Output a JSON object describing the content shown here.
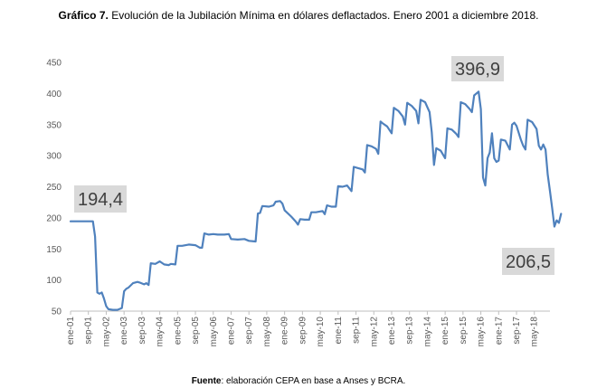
{
  "header": {
    "title_bold": "Gráfico 7.",
    "title_text": " Evolución de la Jubilación Mínima en dólares deflactados. Enero 2001 a diciembre 2018."
  },
  "footer": {
    "source_bold": "Fuente",
    "source_text": ": elaboración CEPA en base a Anses y BCRA."
  },
  "chart_data": {
    "type": "line",
    "title": "",
    "xlabel": "",
    "ylabel": "",
    "ylim": [
      50,
      450
    ],
    "yticks": [
      50,
      100,
      150,
      200,
      250,
      300,
      350,
      400,
      450
    ],
    "grid": false,
    "legend": "none",
    "line_color": "#4f81bd",
    "x_start": "2001-01",
    "x_end": "2018-12",
    "x_tick_labels": [
      "ene-01",
      "sep-01",
      "may-02",
      "ene-03",
      "sep-03",
      "may-04",
      "ene-05",
      "sep-05",
      "may-06",
      "ene-07",
      "sep-07",
      "may-08",
      "ene-09",
      "sep-09",
      "may-10",
      "ene-11",
      "sep-11",
      "may-12",
      "ene-13",
      "sep-13",
      "may-14",
      "ene-15",
      "sep-15",
      "may-16",
      "ene-17",
      "sep-17",
      "may-18"
    ],
    "series": [
      {
        "points": [
          [
            "2001-01",
            194.4
          ],
          [
            "2001-06",
            194.4
          ],
          [
            "2001-11",
            194.4
          ],
          [
            "2001-12",
            170
          ],
          [
            "2002-01",
            80
          ],
          [
            "2002-02",
            78
          ],
          [
            "2002-03",
            80
          ],
          [
            "2002-04",
            70
          ],
          [
            "2002-05",
            58
          ],
          [
            "2002-06",
            53
          ],
          [
            "2002-08",
            52
          ],
          [
            "2002-10",
            52
          ],
          [
            "2002-12",
            55
          ],
          [
            "2003-01",
            82
          ],
          [
            "2003-02",
            86
          ],
          [
            "2003-03",
            88
          ],
          [
            "2003-05",
            95
          ],
          [
            "2003-07",
            97
          ],
          [
            "2003-08",
            96
          ],
          [
            "2003-10",
            93
          ],
          [
            "2003-11",
            95
          ],
          [
            "2003-12",
            92
          ],
          [
            "2004-01",
            127
          ],
          [
            "2004-03",
            126
          ],
          [
            "2004-05",
            130
          ],
          [
            "2004-07",
            125
          ],
          [
            "2004-09",
            124
          ],
          [
            "2004-10",
            126
          ],
          [
            "2004-12",
            125
          ],
          [
            "2005-01",
            155
          ],
          [
            "2005-03",
            155
          ],
          [
            "2005-06",
            157
          ],
          [
            "2005-09",
            156
          ],
          [
            "2005-11",
            152
          ],
          [
            "2005-12",
            152
          ],
          [
            "2006-01",
            175
          ],
          [
            "2006-03",
            173
          ],
          [
            "2006-05",
            174
          ],
          [
            "2006-07",
            173
          ],
          [
            "2006-10",
            173
          ],
          [
            "2006-12",
            174
          ],
          [
            "2007-01",
            166
          ],
          [
            "2007-04",
            165
          ],
          [
            "2007-07",
            166
          ],
          [
            "2007-09",
            163
          ],
          [
            "2007-12",
            162
          ],
          [
            "2008-01",
            207
          ],
          [
            "2008-02",
            208
          ],
          [
            "2008-03",
            219
          ],
          [
            "2008-06",
            218
          ],
          [
            "2008-08",
            220
          ],
          [
            "2008-09",
            226
          ],
          [
            "2008-11",
            227
          ],
          [
            "2008-12",
            223
          ],
          [
            "2009-01",
            212
          ],
          [
            "2009-04",
            202
          ],
          [
            "2009-06",
            194
          ],
          [
            "2009-07",
            189
          ],
          [
            "2009-08",
            198
          ],
          [
            "2009-10",
            197
          ],
          [
            "2009-12",
            197
          ],
          [
            "2010-01",
            209
          ],
          [
            "2010-03",
            209
          ],
          [
            "2010-06",
            211
          ],
          [
            "2010-07",
            206
          ],
          [
            "2010-08",
            220
          ],
          [
            "2010-10",
            218
          ],
          [
            "2010-12",
            218
          ],
          [
            "2011-01",
            251
          ],
          [
            "2011-03",
            250
          ],
          [
            "2011-05",
            252
          ],
          [
            "2011-07",
            243
          ],
          [
            "2011-08",
            282
          ],
          [
            "2011-10",
            280
          ],
          [
            "2011-12",
            278
          ],
          [
            "2012-01",
            273
          ],
          [
            "2012-02",
            317
          ],
          [
            "2012-04",
            315
          ],
          [
            "2012-06",
            311
          ],
          [
            "2012-07",
            303
          ],
          [
            "2012-08",
            355
          ],
          [
            "2012-09",
            352
          ],
          [
            "2012-11",
            347
          ],
          [
            "2013-01",
            336
          ],
          [
            "2013-02",
            377
          ],
          [
            "2013-04",
            372
          ],
          [
            "2013-06",
            363
          ],
          [
            "2013-07",
            350
          ],
          [
            "2013-08",
            385
          ],
          [
            "2013-10",
            380
          ],
          [
            "2013-12",
            372
          ],
          [
            "2014-01",
            352
          ],
          [
            "2014-02",
            390
          ],
          [
            "2014-04",
            386
          ],
          [
            "2014-06",
            370
          ],
          [
            "2014-07",
            338
          ],
          [
            "2014-08",
            285
          ],
          [
            "2014-09",
            312
          ],
          [
            "2014-11",
            308
          ],
          [
            "2015-01",
            296
          ],
          [
            "2015-02",
            344
          ],
          [
            "2015-04",
            342
          ],
          [
            "2015-06",
            335
          ],
          [
            "2015-07",
            330
          ],
          [
            "2015-08",
            386
          ],
          [
            "2015-10",
            383
          ],
          [
            "2015-12",
            375
          ],
          [
            "2016-01",
            370
          ],
          [
            "2016-02",
            396.9
          ],
          [
            "2016-04",
            403
          ],
          [
            "2016-05",
            375
          ],
          [
            "2016-06",
            265
          ],
          [
            "2016-07",
            252
          ],
          [
            "2016-08",
            296
          ],
          [
            "2016-09",
            305
          ],
          [
            "2016-10",
            336
          ],
          [
            "2016-11",
            296
          ],
          [
            "2016-12",
            290
          ],
          [
            "2017-01",
            292
          ],
          [
            "2017-02",
            326
          ],
          [
            "2017-04",
            324
          ],
          [
            "2017-06",
            310
          ],
          [
            "2017-07",
            350
          ],
          [
            "2017-08",
            353
          ],
          [
            "2017-09",
            348
          ],
          [
            "2017-11",
            325
          ],
          [
            "2017-12",
            316
          ],
          [
            "2018-01",
            310
          ],
          [
            "2018-02",
            358
          ],
          [
            "2018-04",
            354
          ],
          [
            "2018-06",
            343
          ],
          [
            "2018-07",
            316
          ],
          [
            "2018-08",
            310
          ],
          [
            "2018-09",
            318
          ],
          [
            "2018-10",
            310
          ],
          [
            "2018-11",
            270
          ],
          [
            "2018-12",
            243
          ],
          [
            "2019-01",
            215
          ],
          [
            "2019-02",
            186
          ],
          [
            "2019-03",
            196
          ],
          [
            "2019-04",
            192
          ],
          [
            "2019-05",
            206.5
          ]
        ]
      }
    ],
    "annotations": [
      {
        "text": "194,4"
      },
      {
        "text": "396,9"
      },
      {
        "text": "206,5"
      }
    ]
  }
}
